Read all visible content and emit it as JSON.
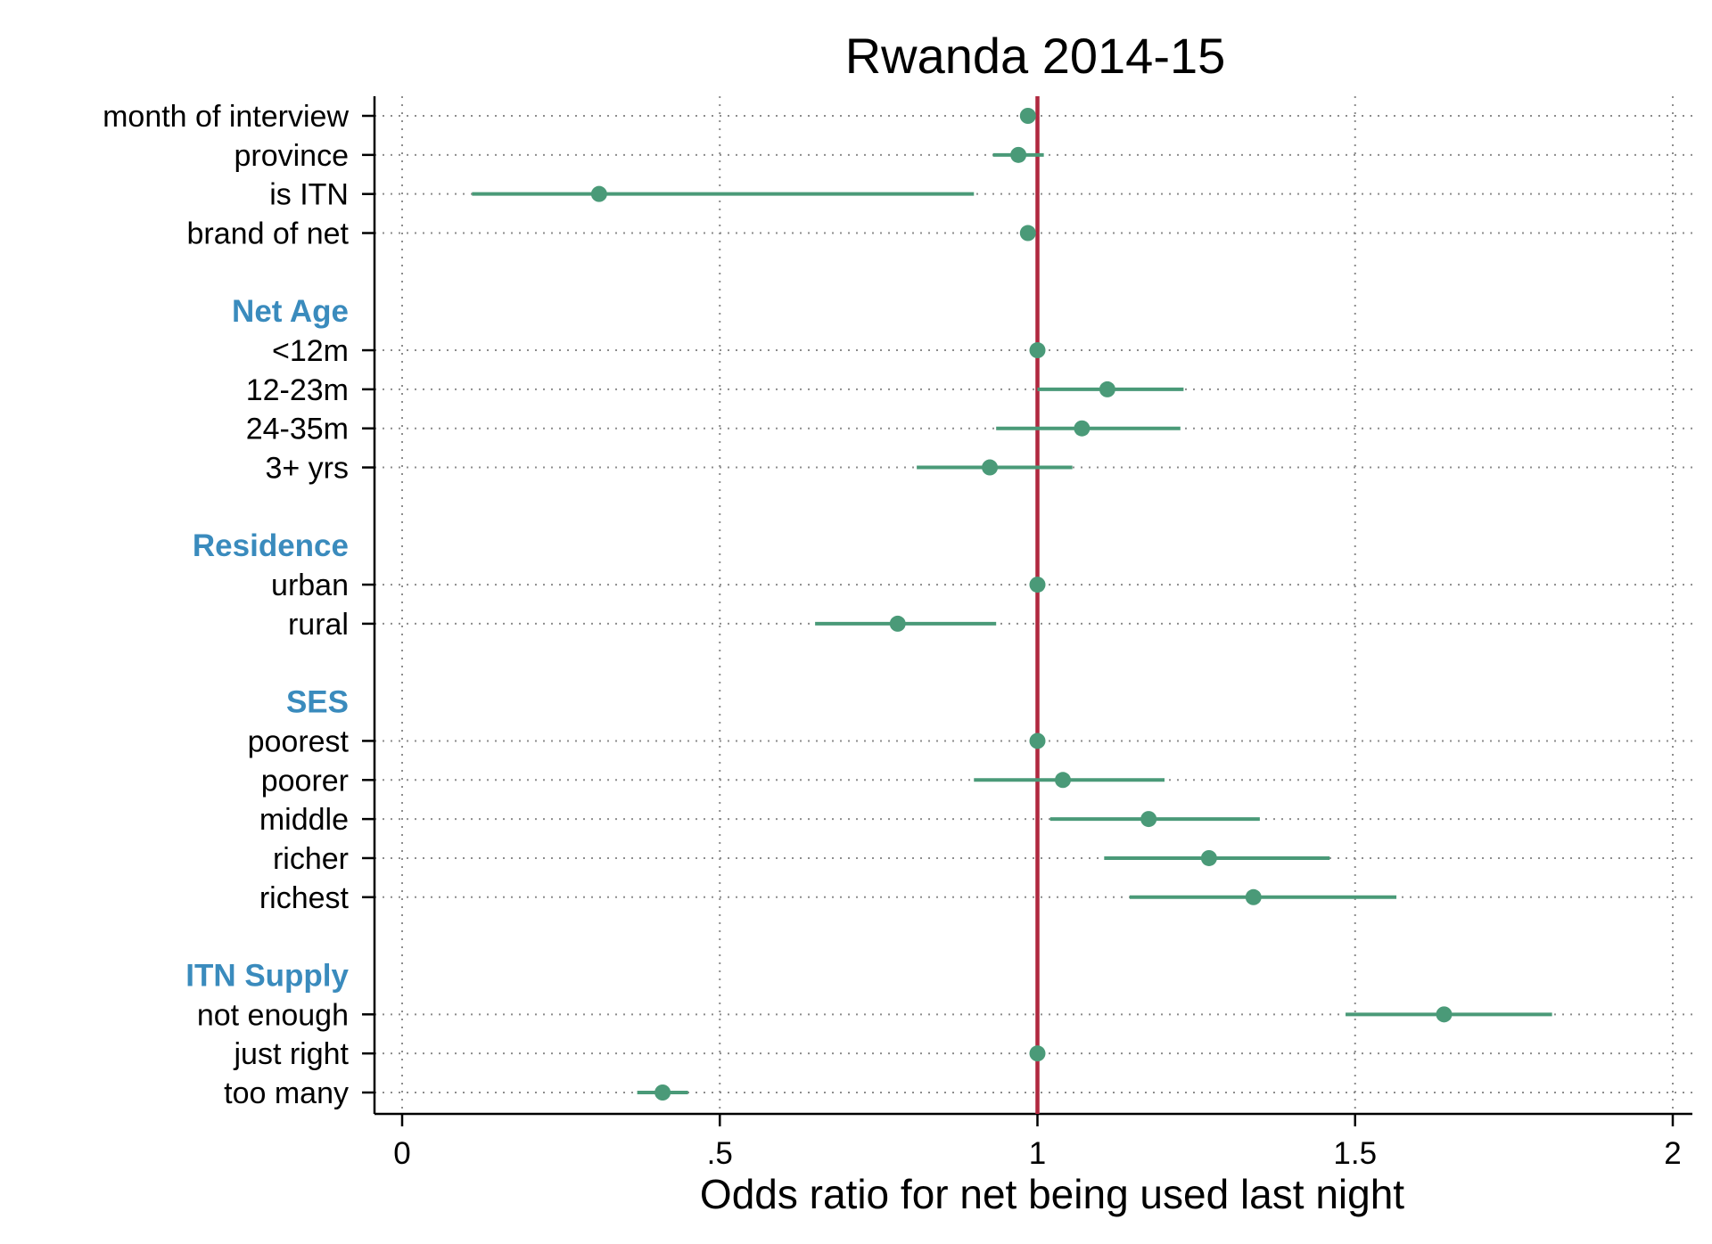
{
  "chart_data": {
    "type": "scatter",
    "subtype": "coefficient-plot",
    "title": "Rwanda 2014-15",
    "xlabel": "Odds ratio for net being used last night",
    "ylabel": "",
    "xlim": [
      0,
      2
    ],
    "x_ticks": [
      0,
      0.5,
      1,
      1.5,
      2
    ],
    "x_tick_labels": [
      "0",
      ".5",
      "1",
      "1.5",
      "2"
    ],
    "reference_line": 1,
    "grid": true,
    "colors": {
      "marker": "#4a9a78",
      "ci": "#4a9a78",
      "reference_line": "#b0283f",
      "group_header": "#3a8bbd",
      "grid": "#8c8c8c"
    },
    "rows": [
      {
        "kind": "item",
        "label": "month of interview",
        "estimate": 0.985,
        "ci_low": null,
        "ci_high": null
      },
      {
        "kind": "item",
        "label": "province",
        "estimate": 0.97,
        "ci_low": 0.93,
        "ci_high": 1.01
      },
      {
        "kind": "item",
        "label": "is ITN",
        "estimate": 0.31,
        "ci_low": 0.11,
        "ci_high": 0.9
      },
      {
        "kind": "item",
        "label": "brand of net",
        "estimate": 0.985,
        "ci_low": null,
        "ci_high": null
      },
      {
        "kind": "spacer"
      },
      {
        "kind": "header",
        "label": "Net Age"
      },
      {
        "kind": "item",
        "label": "<12m",
        "estimate": 1.0,
        "ci_low": null,
        "ci_high": null
      },
      {
        "kind": "item",
        "label": "12-23m",
        "estimate": 1.11,
        "ci_low": 1.0,
        "ci_high": 1.23
      },
      {
        "kind": "item",
        "label": "24-35m",
        "estimate": 1.07,
        "ci_low": 0.935,
        "ci_high": 1.225
      },
      {
        "kind": "item",
        "label": "3+ yrs",
        "estimate": 0.925,
        "ci_low": 0.81,
        "ci_high": 1.055
      },
      {
        "kind": "spacer"
      },
      {
        "kind": "header",
        "label": "Residence"
      },
      {
        "kind": "item",
        "label": "urban",
        "estimate": 1.0,
        "ci_low": null,
        "ci_high": null
      },
      {
        "kind": "item",
        "label": "rural",
        "estimate": 0.78,
        "ci_low": 0.65,
        "ci_high": 0.935
      },
      {
        "kind": "spacer"
      },
      {
        "kind": "header",
        "label": "SES"
      },
      {
        "kind": "item",
        "label": "poorest",
        "estimate": 1.0,
        "ci_low": null,
        "ci_high": null
      },
      {
        "kind": "item",
        "label": "poorer",
        "estimate": 1.04,
        "ci_low": 0.9,
        "ci_high": 1.2
      },
      {
        "kind": "item",
        "label": "middle",
        "estimate": 1.175,
        "ci_low": 1.02,
        "ci_high": 1.35
      },
      {
        "kind": "item",
        "label": "richer",
        "estimate": 1.27,
        "ci_low": 1.105,
        "ci_high": 1.46
      },
      {
        "kind": "item",
        "label": "richest",
        "estimate": 1.34,
        "ci_low": 1.145,
        "ci_high": 1.565
      },
      {
        "kind": "spacer"
      },
      {
        "kind": "header",
        "label": "ITN Supply"
      },
      {
        "kind": "item",
        "label": "not enough",
        "estimate": 1.64,
        "ci_low": 1.485,
        "ci_high": 1.81
      },
      {
        "kind": "item",
        "label": "just right",
        "estimate": 1.0,
        "ci_low": null,
        "ci_high": null
      },
      {
        "kind": "item",
        "label": "too many",
        "estimate": 0.41,
        "ci_low": 0.37,
        "ci_high": 0.45
      }
    ]
  }
}
